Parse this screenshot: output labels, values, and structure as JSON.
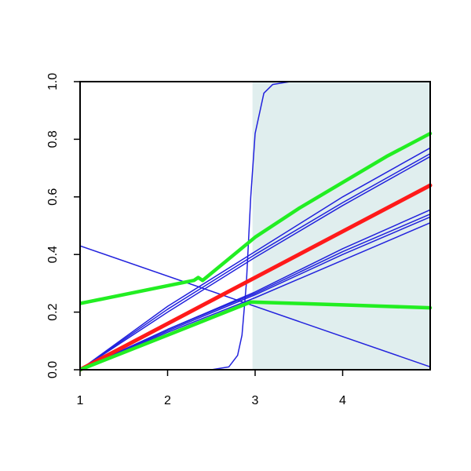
{
  "chart_data": {
    "type": "line",
    "xlim": [
      1,
      5
    ],
    "ylim": [
      0,
      1
    ],
    "xticks": [
      1,
      2,
      3,
      4
    ],
    "yticks": [
      {
        "value": 0,
        "label": "0.0"
      },
      0.2,
      0.4,
      0.6,
      0.8,
      {
        "value": 1,
        "label": "1.0"
      }
    ],
    "shaded_region": {
      "xmin": 2.97,
      "xmax": 5,
      "color": "#e0eeee"
    },
    "series": [
      {
        "color": "#2222dd",
        "line_width": 1.5,
        "x": [
          1,
          2.5,
          2.7,
          2.8,
          2.85,
          2.9,
          2.95,
          3.0,
          3.1,
          3.2,
          3.4,
          5
        ],
        "values": [
          0,
          0,
          0.01,
          0.05,
          0.12,
          0.3,
          0.6,
          0.82,
          0.96,
          0.99,
          1,
          1
        ]
      },
      {
        "color": "#2222dd",
        "line_width": 1.5,
        "x": [
          1,
          5
        ],
        "values": [
          0.43,
          0.01
        ]
      },
      {
        "color": "#2222dd",
        "line_width": 1.5,
        "x": [
          1,
          2,
          3,
          4,
          5
        ],
        "values": [
          0,
          0.22,
          0.41,
          0.6,
          0.77
        ]
      },
      {
        "color": "#2222dd",
        "line_width": 1.5,
        "x": [
          1,
          2,
          3,
          4,
          5
        ],
        "values": [
          0,
          0.21,
          0.4,
          0.58,
          0.75
        ]
      },
      {
        "color": "#2222dd",
        "line_width": 1.5,
        "x": [
          1,
          2,
          3,
          4,
          5
        ],
        "values": [
          0,
          0.2,
          0.39,
          0.57,
          0.74
        ]
      },
      {
        "color": "#2222dd",
        "line_width": 1.5,
        "x": [
          1,
          2,
          3,
          4,
          5
        ],
        "values": [
          0,
          0.14,
          0.27,
          0.42,
          0.555
        ]
      },
      {
        "color": "#2222dd",
        "line_width": 1.5,
        "x": [
          1,
          2,
          3,
          4,
          5
        ],
        "values": [
          0,
          0.14,
          0.265,
          0.41,
          0.54
        ]
      },
      {
        "color": "#2222dd",
        "line_width": 1.5,
        "x": [
          1,
          2,
          3,
          4,
          5
        ],
        "values": [
          0,
          0.135,
          0.26,
          0.4,
          0.53
        ]
      },
      {
        "color": "#2222dd",
        "line_width": 1.5,
        "x": [
          1,
          2,
          3,
          4,
          5
        ],
        "values": [
          0,
          0.13,
          0.25,
          0.38,
          0.51
        ]
      },
      {
        "color": "#ff1a1a",
        "line_width": 5,
        "x": [
          1,
          2,
          3,
          4,
          5
        ],
        "values": [
          0,
          0.16,
          0.32,
          0.48,
          0.64
        ]
      },
      {
        "color": "#22ee22",
        "line_width": 4.5,
        "x": [
          1,
          2.3,
          2.35,
          2.4,
          3,
          3.5,
          4,
          4.5,
          5
        ],
        "values": [
          0.23,
          0.31,
          0.32,
          0.31,
          0.46,
          0.56,
          0.65,
          0.74,
          0.82
        ]
      },
      {
        "color": "#22ee22",
        "line_width": 4.5,
        "x": [
          1,
          2,
          2.95,
          3.5,
          4,
          4.5,
          5
        ],
        "values": [
          0,
          0.12,
          0.235,
          0.23,
          0.225,
          0.22,
          0.215
        ]
      }
    ]
  }
}
